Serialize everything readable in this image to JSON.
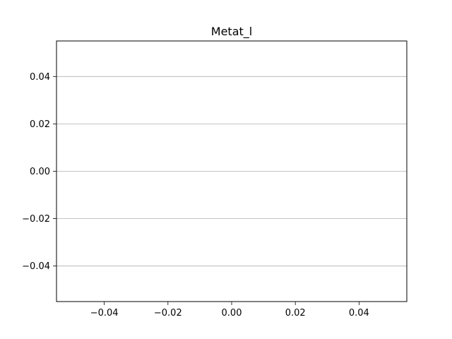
{
  "chart_data": {
    "type": "line",
    "title": "Metat_l",
    "xlabel": "",
    "ylabel": "",
    "series": [],
    "xlim": [
      -0.055,
      0.055
    ],
    "ylim": [
      -0.055,
      0.055
    ],
    "xticks": [
      -0.04,
      -0.02,
      0.0,
      0.02,
      0.04
    ],
    "xtick_labels": [
      "−0.04",
      "−0.02",
      "0.00",
      "0.02",
      "0.04"
    ],
    "yticks": [
      -0.04,
      -0.02,
      0.0,
      0.02,
      0.04
    ],
    "ytick_labels": [
      "−0.04",
      "−0.02",
      "0.00",
      "0.02",
      "0.04"
    ],
    "grid": "horizontal",
    "colors": {
      "grid": "#b0b0b0",
      "axes": "#000000",
      "background": "#ffffff"
    }
  }
}
